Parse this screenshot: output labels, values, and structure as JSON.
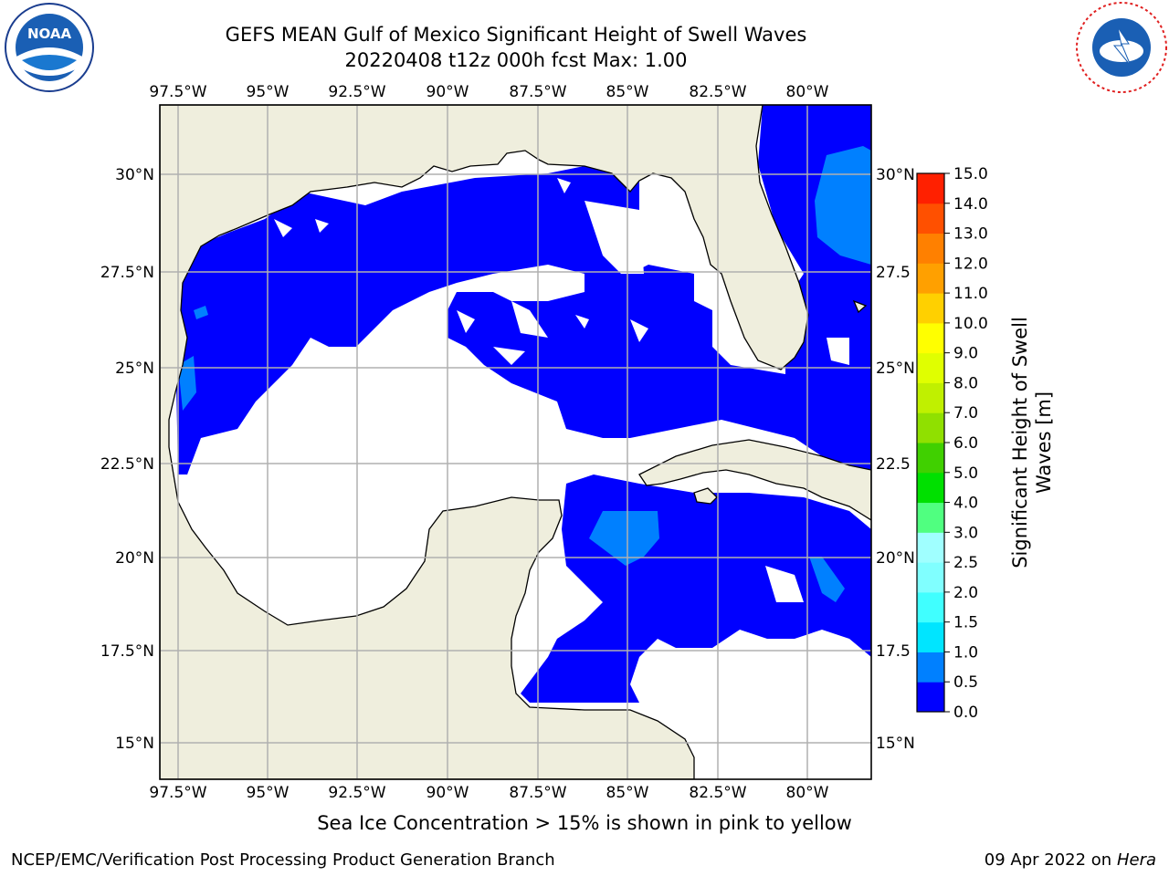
{
  "header": {
    "title_line1": "GEFS MEAN Gulf of Mexico Significant Height of Swell Waves",
    "title_line2": "20220408 t12z 000h fcst   Max: 1.00"
  },
  "logos": {
    "noaa": {
      "text": "NOAA",
      "ring_text": "NATIONAL OCEANIC AND ATMOSPHERIC ADMINISTRATION · U.S. DEPARTMENT OF COMMERCE ·"
    },
    "nws": {
      "ring_text": "NATIONAL WEATHER SERVICE"
    }
  },
  "map": {
    "lon_labels": [
      "97.5°W",
      "95°W",
      "92.5°W",
      "90°W",
      "87.5°W",
      "85°W",
      "82.5°W",
      "80°W"
    ],
    "lat_labels_left": [
      "30°N",
      "27.5°N",
      "25°N",
      "22.5°N",
      "20°N",
      "17.5°N",
      "15°N"
    ],
    "lat_labels_right": [
      "30°N",
      "27.5",
      "25°N",
      "22.5",
      "20°N",
      "17.5",
      "15°N"
    ],
    "colors": {
      "land": "#efeedd",
      "ocean_low": "#0000ff",
      "ocean_mid": "#0080ff",
      "gridline": "#b0b0b0"
    }
  },
  "colorbar": {
    "label": "Significant Height of Swell Waves [m]",
    "label_line1": "Significant Height of Swell",
    "label_line2": "Waves [m]",
    "tick_labels": [
      "0.0",
      "0.5",
      "1.0",
      "1.5",
      "2.0",
      "2.5",
      "3.0",
      "4.0",
      "5.0",
      "6.0",
      "7.0",
      "8.0",
      "9.0",
      "10.0",
      "11.0",
      "12.0",
      "13.0",
      "14.0",
      "15.0"
    ],
    "colors": [
      "#0000ff",
      "#0080ff",
      "#00e5ff",
      "#40ffff",
      "#80ffff",
      "#a0ffff",
      "#50ff80",
      "#00e000",
      "#40d000",
      "#90e000",
      "#c0f000",
      "#e0ff00",
      "#ffff00",
      "#ffd000",
      "#ffa000",
      "#ff8000",
      "#ff5000",
      "#ff2000"
    ]
  },
  "footer": {
    "note": "Sea Ice Concentration > 15% is shown in pink to yellow",
    "credit_left": "NCEP/EMC/Verification Post Processing Product Generation Branch",
    "credit_right_date": "09 Apr 2022 on ",
    "credit_right_host": "Hera"
  }
}
